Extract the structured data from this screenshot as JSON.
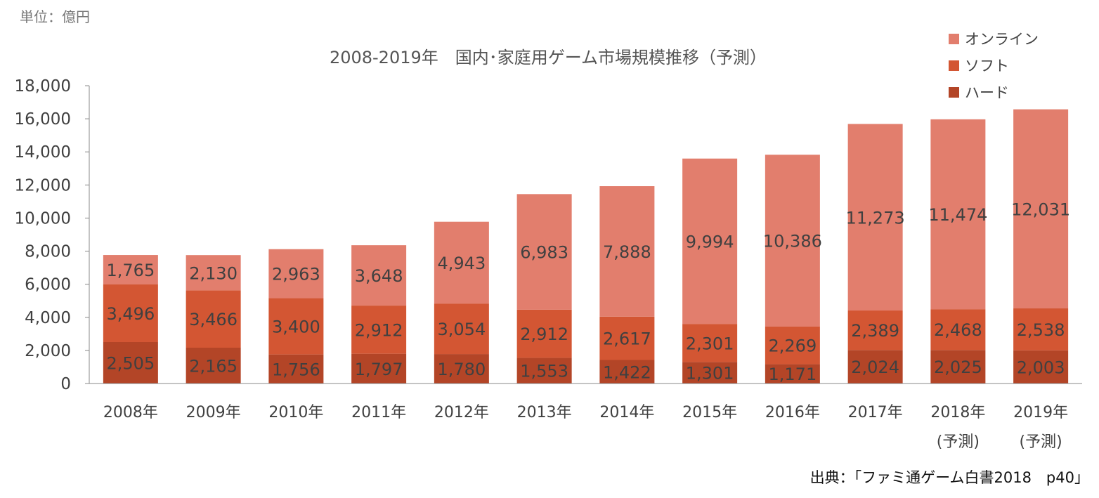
{
  "unit_label": "単位：億円",
  "source_label": "出典：「ファミ通ゲーム白書2018　p40」",
  "colors": {
    "online": "#e27e6d",
    "soft": "#d35633",
    "hard": "#b34527",
    "axis": "#888888",
    "label": "#404040"
  },
  "chart_data": {
    "type": "bar",
    "stacked": true,
    "title": "2008-2019年　国内･家庭用ゲーム市場規模推移（予測）",
    "categories": [
      "2008年",
      "2009年",
      "2010年",
      "2011年",
      "2012年",
      "2013年",
      "2014年",
      "2015年",
      "2016年",
      "2017年",
      "2018年",
      "2019年"
    ],
    "category_notes": [
      "",
      "",
      "",
      "",
      "",
      "",
      "",
      "",
      "",
      "",
      "(予測)",
      "(予測)"
    ],
    "y_ticks": [
      "0",
      "2,000",
      "4,000",
      "6,000",
      "8,000",
      "10,000",
      "12,000",
      "14,000",
      "16,000",
      "18,000"
    ],
    "ylim": [
      0,
      18000
    ],
    "legend_position": "top-right",
    "series": [
      {
        "key": "hard",
        "name": "ハード",
        "color": "#b34527",
        "values": [
          2505,
          2165,
          1756,
          1797,
          1780,
          1553,
          1422,
          1301,
          1171,
          2024,
          2025,
          2003
        ],
        "labels": [
          "2,505",
          "2,165",
          "1,756",
          "1,797",
          "1,780",
          "1,553",
          "1,422",
          "1,301",
          "1,171",
          "2,024",
          "2,025",
          "2,003"
        ]
      },
      {
        "key": "soft",
        "name": "ソフト",
        "color": "#d35633",
        "values": [
          3496,
          3466,
          3400,
          2912,
          3054,
          2912,
          2617,
          2301,
          2269,
          2389,
          2468,
          2538
        ],
        "labels": [
          "3,496",
          "3,466",
          "3,400",
          "2,912",
          "3,054",
          "2,912",
          "2,617",
          "2,301",
          "2,269",
          "2,389",
          "2,468",
          "2,538"
        ]
      },
      {
        "key": "online",
        "name": "オンライン",
        "color": "#e27e6d",
        "values": [
          1765,
          2130,
          2963,
          3648,
          4943,
          6983,
          7888,
          9994,
          10386,
          11273,
          11474,
          12031
        ],
        "labels": [
          "1,765",
          "2,130",
          "2,963",
          "3,648",
          "4,943",
          "6,983",
          "7,888",
          "9,994",
          "10,386",
          "11,273",
          "11,474",
          "12,031"
        ]
      }
    ]
  }
}
